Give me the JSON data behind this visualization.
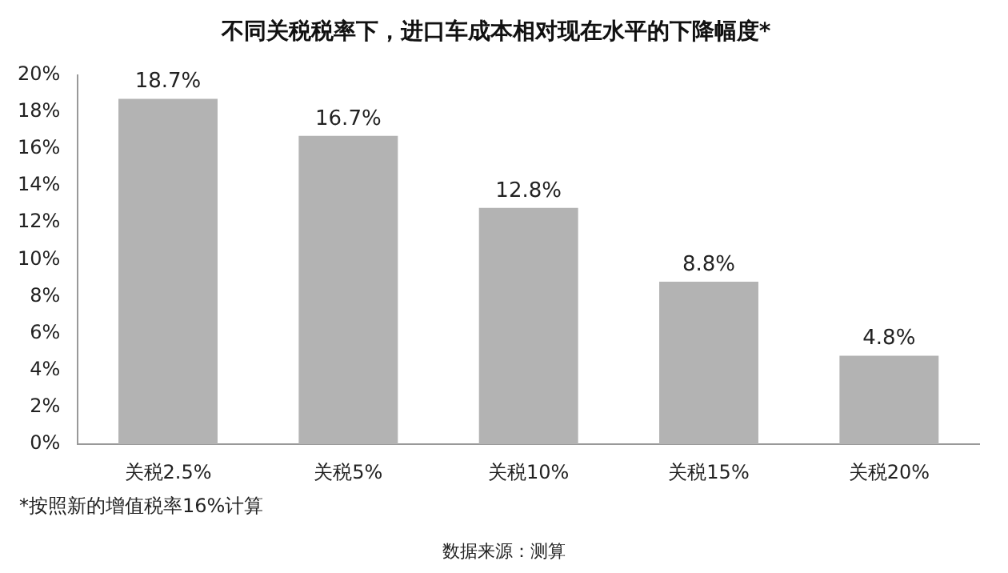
{
  "chart_data": {
    "type": "bar",
    "title": "不同关税税率下，进口车成本相对现在水平的下降幅度*",
    "categories": [
      "关税2.5%",
      "关税5%",
      "关税10%",
      "关税15%",
      "关税20%"
    ],
    "values": [
      18.7,
      16.7,
      12.8,
      8.8,
      4.8
    ],
    "value_labels": [
      "18.7%",
      "16.7%",
      "12.8%",
      "8.8%",
      "4.8%"
    ],
    "color": "#b3b3b3",
    "ylim": [
      0,
      20
    ],
    "yticks": [
      {
        "value": 0,
        "label": "0%"
      },
      {
        "value": 2,
        "label": "2%"
      },
      {
        "value": 4,
        "label": "4%"
      },
      {
        "value": 6,
        "label": "6%"
      },
      {
        "value": 8,
        "label": "8%"
      },
      {
        "value": 10,
        "label": "10%"
      },
      {
        "value": 12,
        "label": "12%"
      },
      {
        "value": 14,
        "label": "14%"
      },
      {
        "value": 16,
        "label": "16%"
      },
      {
        "value": 18,
        "label": "18%"
      },
      {
        "value": 20,
        "label": "20%"
      }
    ],
    "grid": false,
    "legend": false,
    "annotations": [
      "*按照新的增值税率16%计算",
      "数据来源：测算"
    ]
  }
}
